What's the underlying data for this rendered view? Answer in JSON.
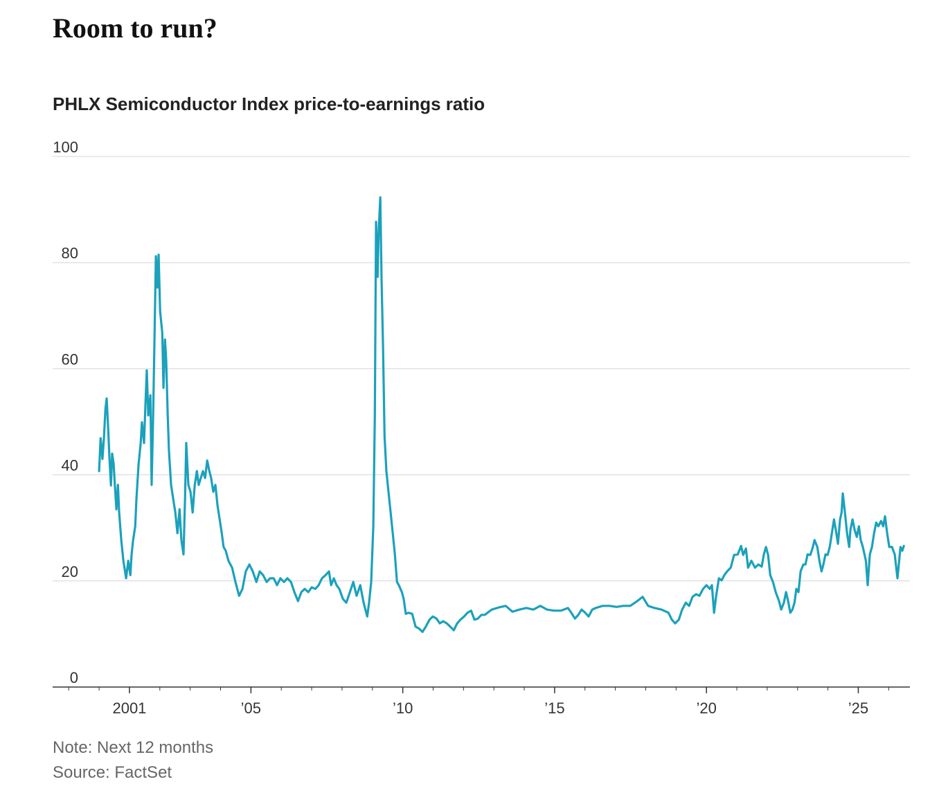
{
  "chart_data": {
    "type": "line",
    "title": "Room to run?",
    "subtitle": "PHLX Semiconductor Index price-to-earnings ratio",
    "note": "Note: Next 12 months",
    "source": "Source: FactSet",
    "color": "#1ba1bb",
    "grid": true,
    "xlim": [
      1998.47,
      2026.7
    ],
    "ylim": [
      0,
      100
    ],
    "yticks": [
      0,
      20,
      40,
      60,
      80,
      100
    ],
    "xticks": [
      2001,
      {
        "value": 2005,
        "label": "’05"
      },
      {
        "value": 2010,
        "label": "’10"
      },
      {
        "value": 2015,
        "label": "’15"
      },
      {
        "value": 2020,
        "label": "’20"
      },
      {
        "value": 2025,
        "label": "’25"
      }
    ],
    "xminorticks": [
      1999,
      2000,
      2001,
      2002,
      2003,
      2004,
      2005,
      2006,
      2007,
      2008,
      2009,
      2010,
      2011,
      2012,
      2013,
      2014,
      2015,
      2016,
      2017,
      2018,
      2019,
      2020,
      2021,
      2022,
      2023,
      2024,
      2025,
      2026
    ],
    "x": [
      2000.0,
      2000.05,
      2000.11,
      2000.16,
      2000.21,
      2000.25,
      2000.3,
      2000.34,
      2000.39,
      2000.43,
      2000.48,
      2000.52,
      2000.57,
      2000.62,
      2000.66,
      2000.73,
      2000.8,
      2000.89,
      2000.96,
      2001.03,
      2001.07,
      2001.12,
      2001.19,
      2001.23,
      2001.3,
      2001.37,
      2001.41,
      2001.48,
      2001.53,
      2001.57,
      2001.62,
      2001.69,
      2001.73,
      2001.78,
      2001.82,
      2001.87,
      2001.92,
      2001.96,
      2002.01,
      2002.08,
      2002.12,
      2002.17,
      2002.21,
      2002.26,
      2002.3,
      2002.37,
      2002.44,
      2002.51,
      2002.58,
      2002.65,
      2002.71,
      2002.78,
      2002.83,
      2002.87,
      2002.94,
      2003.01,
      2003.08,
      2003.15,
      2003.22,
      2003.28,
      2003.35,
      2003.42,
      2003.49,
      2003.56,
      2003.63,
      2003.69,
      2003.76,
      2003.83,
      2003.9,
      2003.97,
      2004.04,
      2004.1,
      2004.17,
      2004.26,
      2004.38,
      2004.49,
      2004.61,
      2004.72,
      2004.83,
      2004.95,
      2005.06,
      2005.18,
      2005.29,
      2005.4,
      2005.52,
      2005.63,
      2005.75,
      2005.86,
      2005.97,
      2006.09,
      2006.2,
      2006.32,
      2006.43,
      2006.55,
      2006.66,
      2006.77,
      2006.89,
      2007.0,
      2007.12,
      2007.23,
      2007.34,
      2007.46,
      2007.57,
      2007.64,
      2007.73,
      2007.82,
      2007.91,
      2008.03,
      2008.14,
      2008.26,
      2008.37,
      2008.48,
      2008.6,
      2008.71,
      2008.83,
      2008.89,
      2008.96,
      2009.03,
      2009.08,
      2009.12,
      2009.17,
      2009.21,
      2009.26,
      2009.3,
      2009.35,
      2009.4,
      2009.46,
      2009.53,
      2009.6,
      2009.67,
      2009.74,
      2009.81,
      2009.87,
      2009.97,
      2010.03,
      2010.1,
      2010.19,
      2010.31,
      2010.42,
      2010.54,
      2010.65,
      2010.76,
      2010.88,
      2010.99,
      2011.11,
      2011.22,
      2011.33,
      2011.45,
      2011.56,
      2011.68,
      2011.79,
      2011.9,
      2012.02,
      2012.13,
      2012.25,
      2012.36,
      2012.47,
      2012.59,
      2012.7,
      2012.93,
      2013.16,
      2013.39,
      2013.61,
      2013.84,
      2014.07,
      2014.3,
      2014.53,
      2014.75,
      2014.98,
      2015.21,
      2015.44,
      2015.55,
      2015.67,
      2015.78,
      2015.89,
      2016.01,
      2016.12,
      2016.24,
      2016.35,
      2016.58,
      2016.81,
      2017.04,
      2017.26,
      2017.49,
      2017.72,
      2017.9,
      2018.08,
      2018.29,
      2018.52,
      2018.75,
      2018.86,
      2018.97,
      2019.09,
      2019.2,
      2019.32,
      2019.43,
      2019.54,
      2019.66,
      2019.77,
      2019.89,
      2020.0,
      2020.11,
      2020.18,
      2020.25,
      2020.32,
      2020.41,
      2020.5,
      2020.59,
      2020.68,
      2020.8,
      2020.91,
      2021.03,
      2021.14,
      2021.21,
      2021.3,
      2021.37,
      2021.48,
      2021.6,
      2021.71,
      2021.82,
      2021.89,
      2021.96,
      2022.03,
      2022.1,
      2022.19,
      2022.28,
      2022.39,
      2022.46,
      2022.55,
      2022.62,
      2022.69,
      2022.76,
      2022.83,
      2022.9,
      2022.96,
      2023.03,
      2023.1,
      2023.19,
      2023.26,
      2023.33,
      2023.42,
      2023.49,
      2023.56,
      2023.65,
      2023.72,
      2023.79,
      2023.85,
      2023.92,
      2023.99,
      2024.06,
      2024.13,
      2024.2,
      2024.26,
      2024.33,
      2024.4,
      2024.45,
      2024.49,
      2024.56,
      2024.63,
      2024.7,
      2024.74,
      2024.81,
      2024.88,
      2024.95,
      2025.02,
      2025.08,
      2025.15,
      2025.25,
      2025.31,
      2025.38,
      2025.45,
      2025.52,
      2025.59,
      2025.66,
      2025.75,
      2025.82,
      2025.88,
      2025.95,
      2026.02,
      2026.11,
      2026.2,
      2026.29,
      2026.39,
      2026.45,
      2026.5
    ],
    "values": [
      40.7,
      46.9,
      43,
      47,
      52.5,
      54.4,
      48.6,
      43.3,
      38,
      44,
      42,
      38,
      33.5,
      38.1,
      33,
      27.7,
      23.8,
      20.5,
      23.8,
      21.1,
      25,
      27.7,
      30.3,
      35.5,
      42,
      46,
      49.9,
      46,
      53.8,
      59.7,
      51.2,
      55,
      38.1,
      51.2,
      64.2,
      81.2,
      75.3,
      81.5,
      70.8,
      66.8,
      56.4,
      65.5,
      61.6,
      51.2,
      44.6,
      38.1,
      35.5,
      32.9,
      29,
      33.5,
      27.7,
      25,
      35.5,
      46,
      38.1,
      36.8,
      32.9,
      38.1,
      40.7,
      38.1,
      39.4,
      40.7,
      39.4,
      42.7,
      40.7,
      39.4,
      36.8,
      38.1,
      34.2,
      31.6,
      29,
      26.4,
      25.7,
      23.8,
      22.5,
      19.8,
      17.2,
      18.5,
      21.8,
      23.1,
      21.8,
      19.8,
      21.8,
      21.1,
      19.8,
      20.5,
      20.5,
      19.2,
      20.5,
      19.8,
      20.5,
      19.8,
      17.9,
      16.2,
      17.9,
      18.5,
      17.9,
      18.8,
      18.5,
      19.2,
      20.5,
      21.1,
      21.8,
      19.2,
      20.5,
      19.2,
      18.5,
      16.6,
      15.9,
      17.9,
      19.8,
      17.2,
      19.2,
      15.9,
      13.3,
      15.9,
      19.8,
      30.3,
      51.2,
      87.7,
      77.3,
      86.4,
      92.3,
      77.3,
      64.2,
      47.3,
      40.7,
      36.8,
      32.9,
      29,
      25,
      19.8,
      19.2,
      17.9,
      16.6,
      13.8,
      14,
      13.8,
      11.4,
      11,
      10.4,
      11.4,
      12.7,
      13.3,
      12.9,
      12,
      12.4,
      12,
      11.4,
      10.7,
      12,
      12.7,
      13.3,
      14,
      14.4,
      12.7,
      12.9,
      13.6,
      13.6,
      14.6,
      15,
      15.3,
      14.2,
      14.6,
      14.9,
      14.6,
      15.3,
      14.6,
      14.4,
      14.4,
      14.9,
      14,
      12.9,
      13.6,
      14.6,
      14,
      13.3,
      14.6,
      14.9,
      15.3,
      15.3,
      15.1,
      15.3,
      15.3,
      16.2,
      17,
      15.3,
      14.9,
      14.6,
      14,
      12.7,
      12,
      12.7,
      14.6,
      15.9,
      15.3,
      17,
      17.5,
      17.2,
      18.5,
      19.2,
      18.5,
      19.2,
      14,
      17.2,
      20.5,
      20.1,
      21.1,
      21.8,
      22.5,
      24.9,
      25,
      26.6,
      24.9,
      26.1,
      22.5,
      23.8,
      22.5,
      23.1,
      22.7,
      25,
      26.4,
      24.9,
      21.1,
      19.8,
      17.9,
      16.2,
      14.6,
      15.9,
      17.9,
      16.2,
      14,
      14.6,
      15.9,
      18.5,
      17.9,
      21.8,
      23.1,
      23.1,
      25,
      24.9,
      26.1,
      27.7,
      26.4,
      23.8,
      21.8,
      23.1,
      25,
      24.9,
      26.4,
      29,
      31.6,
      29.6,
      27,
      31.6,
      32.9,
      36.5,
      32.9,
      29,
      26.4,
      29.6,
      31.6,
      29.6,
      28.3,
      30.3,
      27.7,
      26.4,
      23.8,
      19.2,
      25,
      26.4,
      29,
      31,
      30.3,
      31.3,
      30.3,
      32.2,
      29,
      26.4,
      26.4,
      25,
      20.5,
      26.4,
      25.7,
      26.6
    ]
  }
}
